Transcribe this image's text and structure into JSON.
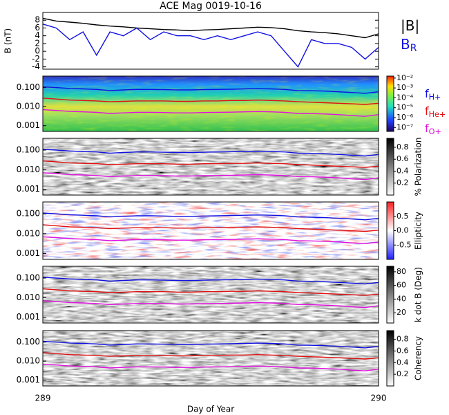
{
  "chart_data": [
    {
      "type": "line",
      "title": "ACE Mag 0019-10-16",
      "ylabel": "B (nT)",
      "x": [
        289,
        289.04,
        289.08,
        289.12,
        289.16,
        289.2,
        289.24,
        289.28,
        289.32,
        289.36,
        289.4,
        289.44,
        289.48,
        289.52,
        289.56,
        289.6,
        289.64,
        289.68,
        289.72,
        289.76,
        289.8,
        289.84,
        289.88,
        289.92,
        289.96,
        290
      ],
      "xlim": [
        289,
        290
      ],
      "ylim": [
        -4.6,
        10
      ],
      "yticks": [
        -4,
        -2,
        0,
        2,
        4,
        6,
        8
      ],
      "series": [
        {
          "name": "|B|",
          "color": "#000000",
          "values": [
            8.5,
            7.8,
            7.5,
            7.2,
            6.8,
            6.5,
            6.3,
            6,
            5.8,
            5.6,
            5.5,
            5.3,
            5.5,
            5.6,
            5.8,
            6,
            6.2,
            6.1,
            5.8,
            5.3,
            5,
            4.8,
            4.5,
            4,
            3.5,
            4.5
          ]
        },
        {
          "name": "B",
          "name_sub": "R",
          "color": "#1010e0",
          "values": [
            7,
            6,
            3,
            5,
            -1,
            5,
            4,
            6,
            3,
            5,
            4,
            4,
            3,
            4,
            3,
            4,
            5,
            4,
            0,
            -4,
            3,
            2,
            2,
            1,
            -2,
            1
          ]
        }
      ]
    },
    {
      "type": "spectrogram",
      "colormap": "rainbow",
      "log_y": true,
      "ylim": [
        0.0005,
        0.4
      ],
      "yticks": [
        0.001,
        {
          "value": 0.01,
          "label": "0.010"
        },
        {
          "value": 0.1,
          "label": "0.100"
        }
      ],
      "clim": [
        -7.4,
        -1.8
      ],
      "cticks": [
        {
          "value": -2,
          "label": "10⁻²"
        },
        {
          "value": -3,
          "label": "10⁻³"
        },
        {
          "value": -4,
          "label": "10⁻⁴"
        },
        {
          "value": -5,
          "label": "10⁻⁵"
        },
        {
          "value": -6,
          "label": "10⁻⁶"
        },
        {
          "value": -7,
          "label": "10⁻⁷"
        }
      ],
      "series": [
        {
          "name": "f",
          "name_sub": "H+",
          "color": "#1010e0",
          "values": [
            0.11,
            0.1,
            0.09,
            0.085,
            0.08,
            0.07,
            0.075,
            0.08,
            0.08,
            0.078,
            0.075,
            0.075,
            0.078,
            0.08,
            0.082,
            0.085,
            0.088,
            0.085,
            0.08,
            0.07,
            0.068,
            0.065,
            0.06,
            0.055,
            0.05,
            0.06
          ]
        },
        {
          "name": "f",
          "name_sub": "He+",
          "color": "#e01010",
          "values": [
            0.028,
            0.025,
            0.022,
            0.021,
            0.02,
            0.018,
            0.019,
            0.02,
            0.02,
            0.02,
            0.019,
            0.019,
            0.02,
            0.02,
            0.021,
            0.021,
            0.022,
            0.021,
            0.02,
            0.018,
            0.017,
            0.016,
            0.015,
            0.014,
            0.013,
            0.015
          ]
        },
        {
          "name": "f",
          "name_sub": "O+",
          "color": "#e010e0",
          "values": [
            0.0069,
            0.0063,
            0.0056,
            0.0053,
            0.005,
            0.0044,
            0.0047,
            0.005,
            0.005,
            0.0049,
            0.0047,
            0.0047,
            0.0049,
            0.005,
            0.0051,
            0.0053,
            0.0055,
            0.0053,
            0.005,
            0.0044,
            0.0043,
            0.0041,
            0.0038,
            0.0034,
            0.0031,
            0.0038
          ]
        }
      ]
    },
    {
      "type": "spectrogram",
      "colormap": "gray",
      "log_y": true,
      "ylim": [
        0.0005,
        0.4
      ],
      "yticks": [
        0.001,
        {
          "value": 0.01,
          "label": "0.010"
        },
        {
          "value": 0.1,
          "label": "0.100"
        }
      ],
      "clabel": "% Polarization",
      "clim": [
        0,
        0.95
      ],
      "cticks": [
        0.2,
        0.4,
        0.6,
        0.8
      ]
    },
    {
      "type": "spectrogram",
      "colormap": "bluered",
      "log_y": true,
      "ylim": [
        0.0005,
        0.4
      ],
      "yticks": [
        0.001,
        {
          "value": 0.01,
          "label": "0.010"
        },
        {
          "value": 0.1,
          "label": "0.100"
        }
      ],
      "clabel": "Ellipticity",
      "clim": [
        -1,
        1
      ],
      "cticks": [
        -0.5,
        {
          "value": 0,
          "label": "0.0"
        },
        0.5
      ]
    },
    {
      "type": "spectrogram",
      "colormap": "gray",
      "log_y": true,
      "ylim": [
        0.0005,
        0.4
      ],
      "yticks": [
        0.001,
        {
          "value": 0.01,
          "label": "0.010"
        },
        {
          "value": 0.1,
          "label": "0.100"
        }
      ],
      "clabel": "k dot B (Deg)",
      "clim": [
        5,
        88
      ],
      "cticks": [
        20,
        40,
        60,
        80
      ]
    },
    {
      "type": "spectrogram",
      "colormap": "gray",
      "log_y": true,
      "ylim": [
        0.0005,
        0.4
      ],
      "yticks": [
        0.001,
        {
          "value": 0.01,
          "label": "0.010"
        },
        {
          "value": 0.1,
          "label": "0.100"
        }
      ],
      "clabel": "Coherency",
      "clim": [
        0,
        0.95
      ],
      "cticks": [
        0.2,
        0.4,
        0.6,
        0.8
      ],
      "xlabel": "Day of Year",
      "xticks": [
        289,
        290
      ]
    }
  ]
}
